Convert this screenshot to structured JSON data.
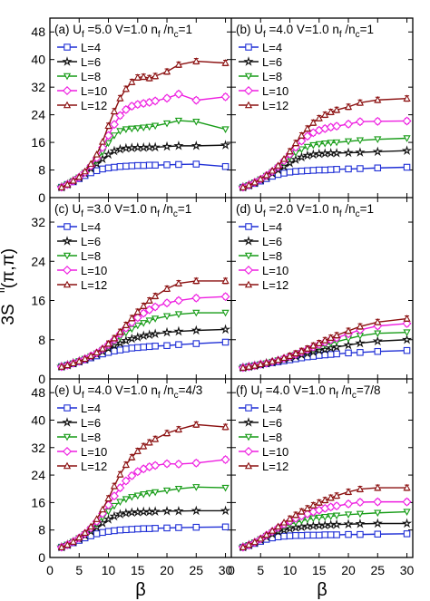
{
  "figure": {
    "ylabel_main": "3S",
    "ylabel_sup": "ff",
    "ylabel_args": "(π,π)",
    "xlabel": "β",
    "xticks": [
      5,
      10,
      15,
      20,
      25,
      30
    ],
    "x_left_zero": "0",
    "x_right_zero": "0",
    "legend_labels": [
      "L=4",
      "L=6",
      "L=8",
      "L=10",
      "L=12"
    ],
    "colors": {
      "L=4": "#1f2fd6",
      "L=6": "#111111",
      "L=8": "#179c17",
      "L=10": "#ee1ee0",
      "L=12": "#8b1010"
    }
  },
  "chart_data": [
    {
      "type": "line",
      "panel": "a",
      "title": {
        "prefix": "(a) U",
        "sub1": "f",
        "mid": " =5.0  V=1.0  n",
        "sub2": "f",
        "slash": " /n",
        "sub3": "c",
        "tail": "=1"
      },
      "ylim": [
        0,
        52
      ],
      "yticks": [
        0,
        8,
        16,
        24,
        32,
        40,
        48
      ],
      "xlim": [
        0,
        31
      ],
      "x": [
        2,
        3,
        4,
        5,
        6,
        7,
        8,
        9,
        10,
        11,
        12,
        13,
        14,
        15,
        16,
        17,
        18,
        20,
        22,
        25,
        30
      ],
      "series": [
        {
          "name": "L=4",
          "values": [
            3.0,
            3.8,
            4.6,
            5.5,
            6.4,
            7.2,
            7.8,
            8.3,
            8.6,
            8.8,
            9.0,
            9.1,
            9.2,
            9.3,
            9.3,
            9.4,
            9.4,
            9.5,
            9.6,
            9.7,
            9.0
          ]
        },
        {
          "name": "L=6",
          "values": [
            3.0,
            3.8,
            4.8,
            5.8,
            7.0,
            8.4,
            9.8,
            11.2,
            12.5,
            13.5,
            14.0,
            14.3,
            14.4,
            14.5,
            14.5,
            14.6,
            14.6,
            14.8,
            15.0,
            15.0,
            15.2
          ]
        },
        {
          "name": "L=8",
          "values": [
            3.0,
            3.8,
            4.8,
            5.8,
            7.2,
            8.8,
            10.8,
            13.2,
            15.8,
            18.0,
            19.3,
            19.8,
            20.0,
            20.1,
            20.3,
            20.5,
            20.8,
            21.5,
            22.3,
            22.0,
            19.8
          ]
        },
        {
          "name": "L=10",
          "values": [
            3.0,
            3.8,
            4.8,
            5.9,
            7.3,
            9.2,
            11.5,
            14.5,
            18.0,
            21.2,
            23.8,
            25.5,
            26.5,
            27.0,
            27.3,
            27.6,
            28.0,
            28.8,
            30.0,
            28.2,
            29.2
          ]
        },
        {
          "name": "L=12",
          "values": [
            3.0,
            3.8,
            4.9,
            6.0,
            7.6,
            9.8,
            12.5,
            16.2,
            20.8,
            25.0,
            28.8,
            31.5,
            33.5,
            34.8,
            35.0,
            34.6,
            35.2,
            36.5,
            38.5,
            39.5,
            39.0
          ]
        }
      ]
    },
    {
      "type": "line",
      "panel": "b",
      "title": {
        "prefix": "(b) U",
        "sub1": "f",
        "mid": " =4.0  V=1.0  n",
        "sub2": "f",
        "slash": " /n",
        "sub3": "c",
        "tail": "=1"
      },
      "ylim": [
        0,
        52
      ],
      "yticks": [
        0,
        8,
        16,
        24,
        32,
        40,
        48
      ],
      "xlim": [
        0,
        31
      ],
      "x": [
        2,
        3,
        4,
        5,
        6,
        7,
        8,
        9,
        10,
        11,
        12,
        13,
        14,
        15,
        16,
        17,
        18,
        20,
        22,
        25,
        30
      ],
      "series": [
        {
          "name": "L=4",
          "values": [
            3.0,
            3.5,
            4.1,
            4.8,
            5.5,
            6.2,
            6.7,
            7.1,
            7.4,
            7.6,
            7.7,
            7.8,
            7.9,
            8.0,
            8.0,
            8.1,
            8.2,
            8.3,
            8.4,
            8.6,
            8.8
          ]
        },
        {
          "name": "L=6",
          "values": [
            3.0,
            3.6,
            4.3,
            5.1,
            6.0,
            7.0,
            8.0,
            9.0,
            10.0,
            11.0,
            11.7,
            12.2,
            12.5,
            12.7,
            12.8,
            12.9,
            12.9,
            13.0,
            13.1,
            13.3,
            13.6
          ]
        },
        {
          "name": "L=8",
          "values": [
            3.0,
            3.6,
            4.4,
            5.3,
            6.3,
            7.4,
            8.7,
            10.1,
            11.6,
            13.0,
            14.0,
            14.7,
            15.2,
            15.5,
            15.7,
            15.9,
            16.0,
            16.3,
            16.6,
            16.9,
            17.2
          ]
        },
        {
          "name": "L=10",
          "values": [
            3.0,
            3.6,
            4.4,
            5.3,
            6.4,
            7.6,
            9.0,
            10.7,
            12.6,
            14.6,
            16.4,
            17.8,
            18.8,
            19.5,
            20.0,
            20.4,
            20.7,
            21.3,
            22.0,
            22.1,
            22.2
          ]
        },
        {
          "name": "L=12",
          "values": [
            3.0,
            3.6,
            4.4,
            5.4,
            6.5,
            7.8,
            9.3,
            11.2,
            13.4,
            15.8,
            18.0,
            20.0,
            21.7,
            23.0,
            24.0,
            24.8,
            25.4,
            26.3,
            27.5,
            28.3,
            28.7
          ]
        }
      ]
    },
    {
      "type": "line",
      "panel": "c",
      "title": {
        "prefix": "(c) U",
        "sub1": "f",
        "mid": " =3.0  V=1.0  n",
        "sub2": "f",
        "slash": " /n",
        "sub3": "c",
        "tail": "=1"
      },
      "ylim": [
        0,
        37
      ],
      "yticks": [
        0,
        8,
        16,
        24,
        32
      ],
      "xlim": [
        0,
        31
      ],
      "x": [
        2,
        3,
        4,
        5,
        6,
        7,
        8,
        9,
        10,
        11,
        12,
        13,
        14,
        15,
        16,
        17,
        18,
        20,
        22,
        25,
        30
      ],
      "series": [
        {
          "name": "L=4",
          "values": [
            2.5,
            2.8,
            3.1,
            3.5,
            3.9,
            4.3,
            4.7,
            5.1,
            5.4,
            5.7,
            5.9,
            6.1,
            6.3,
            6.4,
            6.5,
            6.6,
            6.7,
            6.8,
            7.0,
            7.2,
            7.5
          ]
        },
        {
          "name": "L=6",
          "values": [
            2.5,
            2.8,
            3.2,
            3.6,
            4.0,
            4.5,
            5.0,
            5.6,
            6.2,
            6.8,
            7.3,
            7.8,
            8.2,
            8.5,
            8.8,
            9.0,
            9.2,
            9.5,
            9.7,
            9.9,
            10.1
          ]
        },
        {
          "name": "L=8",
          "values": [
            2.5,
            2.8,
            3.2,
            3.6,
            4.1,
            4.6,
            5.2,
            5.9,
            6.7,
            7.6,
            8.5,
            9.4,
            10.2,
            10.9,
            11.4,
            11.9,
            12.3,
            12.8,
            13.2,
            13.5,
            13.5
          ]
        },
        {
          "name": "L=10",
          "values": [
            2.5,
            2.8,
            3.2,
            3.6,
            4.1,
            4.7,
            5.3,
            6.1,
            7.0,
            8.0,
            9.2,
            10.4,
            11.5,
            12.5,
            13.4,
            14.1,
            14.7,
            15.5,
            16.0,
            16.5,
            16.8
          ]
        },
        {
          "name": "L=12",
          "values": [
            2.5,
            2.8,
            3.2,
            3.6,
            4.1,
            4.7,
            5.4,
            6.2,
            7.2,
            8.3,
            9.6,
            11.0,
            12.4,
            13.7,
            14.9,
            16.0,
            16.9,
            18.4,
            19.5,
            20.0,
            20.0
          ]
        }
      ]
    },
    {
      "type": "line",
      "panel": "d",
      "title": {
        "prefix": "(d) U",
        "sub1": "f",
        "mid": " =2.0  V=1.0  n",
        "sub2": "f",
        "slash": " /n",
        "sub3": "c",
        "tail": "=1"
      },
      "ylim": [
        0,
        37
      ],
      "yticks": [
        0,
        8,
        16,
        24,
        32
      ],
      "xlim": [
        0,
        31
      ],
      "x": [
        2,
        3,
        4,
        5,
        6,
        7,
        8,
        9,
        10,
        11,
        12,
        13,
        14,
        15,
        16,
        17,
        18,
        20,
        22,
        25,
        30
      ],
      "series": [
        {
          "name": "L=4",
          "values": [
            2.3,
            2.5,
            2.7,
            2.9,
            3.1,
            3.3,
            3.5,
            3.7,
            3.9,
            4.1,
            4.3,
            4.5,
            4.6,
            4.8,
            4.9,
            5.0,
            5.1,
            5.3,
            5.4,
            5.6,
            5.8
          ]
        },
        {
          "name": "L=6",
          "values": [
            2.3,
            2.5,
            2.7,
            2.9,
            3.2,
            3.4,
            3.7,
            4.0,
            4.3,
            4.6,
            4.9,
            5.2,
            5.5,
            5.8,
            6.0,
            6.3,
            6.5,
            6.9,
            7.3,
            7.7,
            8.0
          ]
        },
        {
          "name": "L=8",
          "values": [
            2.3,
            2.5,
            2.7,
            3.0,
            3.2,
            3.5,
            3.8,
            4.1,
            4.5,
            4.9,
            5.3,
            5.7,
            6.1,
            6.5,
            6.9,
            7.3,
            7.6,
            8.2,
            8.8,
            9.3,
            9.5
          ]
        },
        {
          "name": "L=10",
          "values": [
            2.3,
            2.5,
            2.7,
            3.0,
            3.2,
            3.5,
            3.8,
            4.2,
            4.6,
            5.0,
            5.5,
            6.0,
            6.5,
            7.0,
            7.5,
            8.0,
            8.4,
            9.2,
            10.0,
            10.8,
            11.3
          ]
        },
        {
          "name": "L=12",
          "values": [
            2.3,
            2.5,
            2.7,
            3.0,
            3.3,
            3.6,
            3.9,
            4.3,
            4.7,
            5.2,
            5.7,
            6.2,
            6.8,
            7.3,
            7.9,
            8.4,
            8.9,
            9.8,
            10.7,
            11.6,
            12.3
          ]
        }
      ]
    },
    {
      "type": "line",
      "panel": "e",
      "title": {
        "prefix": "(e) U",
        "sub1": "f",
        "mid": " =4.0  V=1.0  n",
        "sub2": "f",
        "slash": " /n",
        "sub3": "c",
        "tail": "=4/3"
      },
      "ylim": [
        0,
        52
      ],
      "yticks": [
        0,
        8,
        16,
        24,
        32,
        40,
        48
      ],
      "xlim": [
        0,
        31
      ],
      "x": [
        2,
        3,
        4,
        5,
        6,
        7,
        8,
        9,
        10,
        11,
        12,
        13,
        14,
        15,
        16,
        17,
        18,
        20,
        22,
        25,
        30
      ],
      "series": [
        {
          "name": "L=4",
          "values": [
            3.0,
            3.6,
            4.3,
            5.0,
            5.7,
            6.3,
            6.9,
            7.3,
            7.6,
            7.8,
            8.0,
            8.1,
            8.2,
            8.3,
            8.4,
            8.4,
            8.5,
            8.6,
            8.7,
            8.8,
            8.9
          ]
        },
        {
          "name": "L=6",
          "values": [
            3.0,
            3.7,
            4.5,
            5.4,
            6.4,
            7.6,
            8.8,
            10.0,
            11.1,
            12.0,
            12.6,
            12.9,
            13.1,
            13.2,
            13.3,
            13.3,
            13.4,
            13.5,
            13.5,
            13.6,
            13.6
          ]
        },
        {
          "name": "L=8",
          "values": [
            3.0,
            3.7,
            4.6,
            5.6,
            6.8,
            8.2,
            9.8,
            11.6,
            13.4,
            15.0,
            16.2,
            17.0,
            17.6,
            18.0,
            18.4,
            18.7,
            19.0,
            19.5,
            20.0,
            20.5,
            20.3
          ]
        },
        {
          "name": "L=10",
          "values": [
            3.0,
            3.7,
            4.6,
            5.7,
            7.0,
            8.6,
            10.5,
            12.8,
            15.3,
            17.9,
            20.3,
            22.3,
            23.8,
            25.0,
            25.8,
            26.4,
            26.8,
            27.3,
            27.2,
            27.5,
            28.5
          ]
        },
        {
          "name": "L=12",
          "values": [
            3.0,
            3.7,
            4.6,
            5.8,
            7.2,
            9.0,
            11.2,
            14.0,
            17.2,
            20.8,
            24.2,
            27.0,
            29.2,
            31.0,
            32.4,
            33.5,
            34.5,
            36.2,
            37.3,
            38.7,
            38.0
          ]
        }
      ]
    },
    {
      "type": "line",
      "panel": "f",
      "title": {
        "prefix": "(f) U",
        "sub1": "f",
        "mid": " =4.0  V=1.0  n",
        "sub2": "f",
        "slash": " /n",
        "sub3": "c",
        "tail": "=7/8"
      },
      "ylim": [
        0,
        52
      ],
      "yticks": [
        0,
        8,
        16,
        24,
        32,
        40,
        48
      ],
      "xlim": [
        0,
        31
      ],
      "x": [
        2,
        3,
        4,
        5,
        6,
        7,
        8,
        9,
        10,
        11,
        12,
        13,
        14,
        15,
        16,
        17,
        18,
        20,
        22,
        25,
        30
      ],
      "series": [
        {
          "name": "L=4",
          "values": [
            3.0,
            3.5,
            4.1,
            4.7,
            5.3,
            5.7,
            6.0,
            6.2,
            6.3,
            6.4,
            6.4,
            6.5,
            6.5,
            6.5,
            6.6,
            6.6,
            6.6,
            6.7,
            6.7,
            6.8,
            6.9
          ]
        },
        {
          "name": "L=6",
          "values": [
            3.0,
            3.6,
            4.3,
            5.1,
            6.0,
            6.8,
            7.5,
            8.0,
            8.4,
            8.7,
            8.9,
            9.1,
            9.2,
            9.3,
            9.4,
            9.5,
            9.6,
            9.7,
            9.8,
            9.9,
            9.9
          ]
        },
        {
          "name": "L=8",
          "values": [
            3.0,
            3.6,
            4.4,
            5.3,
            6.3,
            7.3,
            8.2,
            9.0,
            9.7,
            10.2,
            10.7,
            11.1,
            11.4,
            11.6,
            11.8,
            12.0,
            12.2,
            12.5,
            12.7,
            13.0,
            13.3
          ]
        },
        {
          "name": "L=10",
          "values": [
            3.0,
            3.6,
            4.4,
            5.4,
            6.5,
            7.6,
            8.7,
            9.7,
            10.6,
            11.4,
            12.1,
            12.7,
            13.3,
            13.8,
            14.3,
            14.7,
            15.0,
            15.6,
            16.1,
            16.2,
            16.2
          ]
        },
        {
          "name": "L=12",
          "values": [
            3.0,
            3.7,
            4.5,
            5.5,
            6.6,
            7.8,
            9.0,
            10.2,
            11.3,
            12.4,
            13.4,
            14.3,
            15.2,
            16.0,
            16.7,
            17.4,
            18.0,
            19.1,
            19.9,
            20.3,
            20.3
          ]
        }
      ]
    }
  ]
}
